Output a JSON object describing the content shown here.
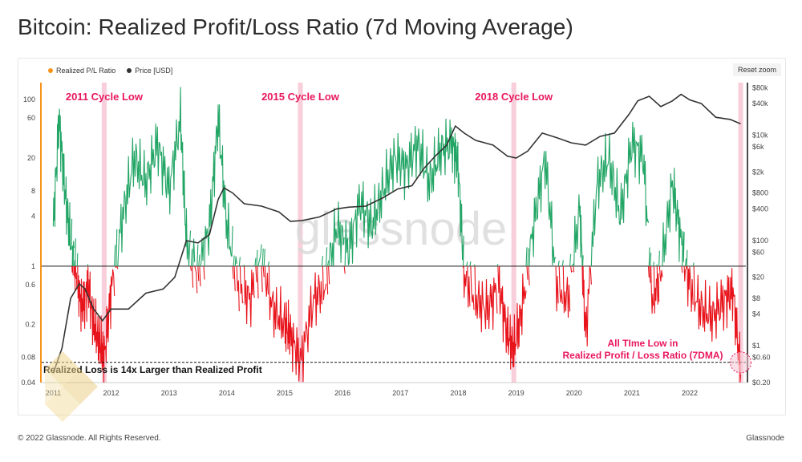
{
  "title": "Bitcoin: Realized Profit/Loss Ratio (7d Moving Average)",
  "legend": {
    "ratio_label": "Realized P/L Ratio",
    "price_label": "Price [USD]"
  },
  "reset_zoom_label": "Reset zoom",
  "watermark": "glassnode",
  "footer": {
    "copyright": "© 2022 Glassnode. All Rights Reserved.",
    "brand": "Glassnode"
  },
  "colors": {
    "profit": "#22a565",
    "loss": "#e8141c",
    "price": "#333333",
    "highlight": "#f7c6d3",
    "annotation": "#e8175d",
    "ratio_axis": "#f7931a"
  },
  "annotations": {
    "cycle_lows": [
      {
        "label": "2011 Cycle Low",
        "year": 2011.88
      },
      {
        "label": "2015 Cycle Low",
        "year": 2015.27
      },
      {
        "label": "2018 Cycle Low",
        "year": 2018.96
      }
    ],
    "ath_low_line1": "All TIme Low in",
    "ath_low_line2": "Realized Profit / Loss Ratio (7DMA)",
    "threshold_label": "Realized Loss is 14x Larger than Realized Profit",
    "threshold_value": 0.07,
    "current_low_year": 2022.88
  },
  "chart_data": {
    "type": "line",
    "x_ticks": [
      "2011",
      "2012",
      "2013",
      "2014",
      "2015",
      "2016",
      "2017",
      "2018",
      "2019",
      "2020",
      "2021",
      "2022"
    ],
    "xlim": [
      2010.8,
      2022.97
    ],
    "left_axis": {
      "label": "Realized P/L Ratio",
      "scale": "log",
      "ylim": [
        0.04,
        160
      ],
      "ticks": [
        "100",
        "60",
        "20",
        "8",
        "4",
        "1",
        "0.6",
        "0.2",
        "0.08",
        "0.04"
      ],
      "tick_values": [
        100,
        60,
        20,
        8,
        4,
        1,
        0.6,
        0.2,
        0.08,
        0.04
      ]
    },
    "right_axis": {
      "label": "Price [USD]",
      "scale": "log",
      "ylim": [
        0.2,
        100000
      ],
      "ticks": [
        "$80k",
        "$40k",
        "$10k",
        "$6k",
        "$2k",
        "$800",
        "$400",
        "$100",
        "$60",
        "$20",
        "$8",
        "$4",
        "$1",
        "$0.60",
        "$0.20"
      ],
      "tick_values": [
        80000,
        40000,
        10000,
        6000,
        2000,
        800,
        400,
        100,
        60,
        20,
        8,
        4,
        1,
        0.6,
        0.2
      ]
    },
    "reference_line": 1,
    "series": [
      {
        "name": "Price [USD]",
        "x": [
          2011.0,
          2011.15,
          2011.3,
          2011.45,
          2011.55,
          2011.7,
          2011.85,
          2012.0,
          2012.3,
          2012.6,
          2012.9,
          2013.1,
          2013.3,
          2013.5,
          2013.7,
          2013.85,
          2013.95,
          2014.1,
          2014.3,
          2014.6,
          2014.9,
          2015.1,
          2015.3,
          2015.6,
          2015.9,
          2016.1,
          2016.4,
          2016.7,
          2016.95,
          2017.2,
          2017.4,
          2017.6,
          2017.8,
          2017.95,
          2018.1,
          2018.3,
          2018.6,
          2018.85,
          2019.0,
          2019.2,
          2019.45,
          2019.7,
          2019.95,
          2020.2,
          2020.45,
          2020.7,
          2020.95,
          2021.1,
          2021.3,
          2021.5,
          2021.7,
          2021.85,
          2022.0,
          2022.2,
          2022.45,
          2022.7,
          2022.88
        ],
        "y": [
          0.3,
          0.9,
          8,
          15,
          12,
          5,
          3,
          5,
          5,
          10,
          12,
          20,
          100,
          90,
          130,
          600,
          1000,
          800,
          500,
          450,
          350,
          230,
          240,
          280,
          400,
          430,
          450,
          650,
          950,
          1100,
          2300,
          4000,
          6500,
          15000,
          11000,
          8000,
          6500,
          4000,
          3700,
          5000,
          11000,
          9000,
          7200,
          6500,
          9500,
          11000,
          25000,
          45000,
          55000,
          35000,
          45000,
          60000,
          47000,
          40000,
          22000,
          20000,
          16500
        ]
      },
      {
        "name": "Realized P/L Ratio",
        "x": [
          2011.0,
          2011.1,
          2011.2,
          2011.3,
          2011.4,
          2011.5,
          2011.6,
          2011.7,
          2011.8,
          2011.88,
          2012.0,
          2012.2,
          2012.4,
          2012.6,
          2012.8,
          2013.0,
          2013.2,
          2013.3,
          2013.5,
          2013.7,
          2013.85,
          2014.0,
          2014.2,
          2014.4,
          2014.6,
          2014.8,
          2015.0,
          2015.1,
          2015.27,
          2015.5,
          2015.7,
          2015.9,
          2016.1,
          2016.3,
          2016.5,
          2016.7,
          2016.9,
          2017.1,
          2017.3,
          2017.5,
          2017.7,
          2017.9,
          2018.0,
          2018.1,
          2018.3,
          2018.5,
          2018.7,
          2018.85,
          2018.96,
          2019.1,
          2019.3,
          2019.5,
          2019.7,
          2019.9,
          2020.1,
          2020.2,
          2020.4,
          2020.6,
          2020.8,
          2021.0,
          2021.2,
          2021.35,
          2021.5,
          2021.7,
          2021.85,
          2022.0,
          2022.2,
          2022.4,
          2022.6,
          2022.75,
          2022.88
        ],
        "y": [
          3,
          60,
          8,
          2,
          0.8,
          0.3,
          0.6,
          0.2,
          0.12,
          0.08,
          0.5,
          4,
          20,
          10,
          30,
          8,
          60,
          2,
          0.8,
          3,
          60,
          3,
          0.6,
          0.4,
          1.3,
          0.3,
          0.2,
          0.15,
          0.07,
          0.4,
          0.6,
          3,
          1.5,
          6,
          3,
          8,
          20,
          15,
          30,
          10,
          25,
          30,
          15,
          0.8,
          0.4,
          0.3,
          0.6,
          0.15,
          0.1,
          0.3,
          3,
          20,
          0.6,
          0.4,
          5,
          0.15,
          10,
          20,
          4,
          30,
          20,
          0.4,
          0.8,
          10,
          2,
          0.6,
          0.3,
          0.25,
          0.4,
          0.5,
          0.05
        ]
      }
    ]
  }
}
